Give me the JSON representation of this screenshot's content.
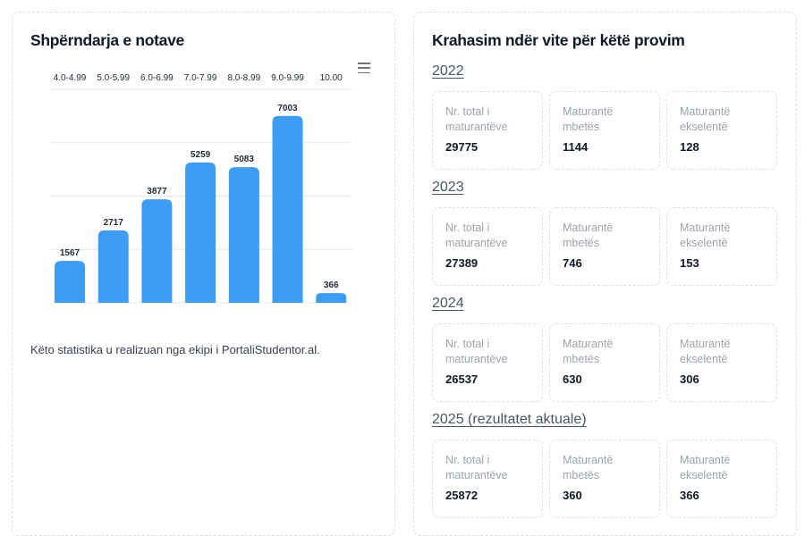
{
  "left_panel": {
    "title": "Shpërndarja e notave",
    "footnote": "Këto statistika u realizuan nga ekipi i PortaliStudentor.al."
  },
  "chart_data": {
    "type": "bar",
    "categories": [
      "4.0-4.99",
      "5.0-5.99",
      "6.0-6.99",
      "7.0-7.99",
      "8.0-8.99",
      "9.0-9.99",
      "10.00"
    ],
    "values": [
      1567,
      2717,
      3877,
      5259,
      5083,
      7003,
      366
    ],
    "ylim": [
      0,
      8000
    ],
    "grid": true,
    "category_labels_position": "top",
    "bar_color": "#3d9cf5"
  },
  "right_panel": {
    "title": "Krahasim ndër vite për këtë provim",
    "labels": {
      "total": "Nr. total i maturantëve",
      "failed": "Maturantë mbetës",
      "excellent": "Maturantë ekselentë"
    },
    "years": [
      {
        "heading": "2022",
        "total": "29775",
        "failed": "1144",
        "excellent": "128"
      },
      {
        "heading": "2023",
        "total": "27389",
        "failed": "746",
        "excellent": "153"
      },
      {
        "heading": "2024",
        "total": "26537",
        "failed": "630",
        "excellent": "306"
      },
      {
        "heading": "2025 (rezultatet aktuale)",
        "total": "25872",
        "failed": "360",
        "excellent": "366"
      }
    ]
  },
  "colors": {
    "bar": "#3d9cf5",
    "grid": "#e5e7eb",
    "muted_label": "#9ca3af"
  }
}
